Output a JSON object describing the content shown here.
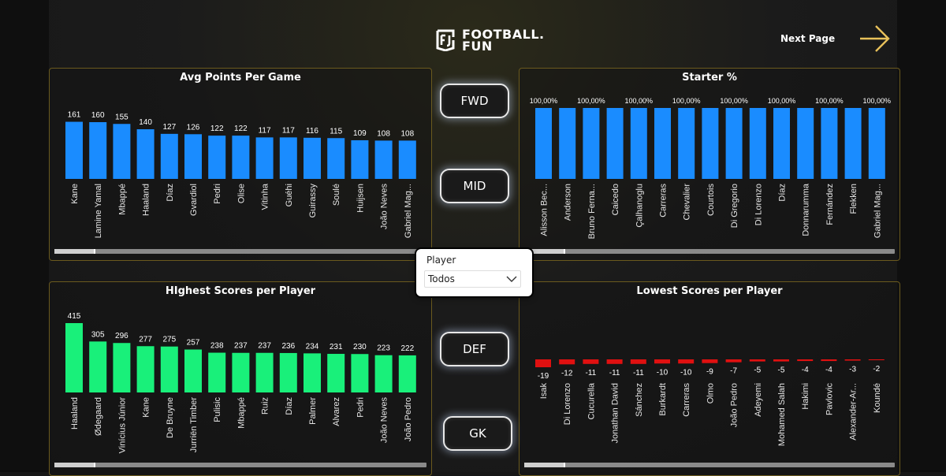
{
  "header": {
    "brand_line1": "FOOTBALL.",
    "brand_line2": "FUN",
    "next_page_label": "Next Page"
  },
  "position_buttons": {
    "fwd": "FWD",
    "mid": "MID",
    "def": "DEF",
    "gk": "GK"
  },
  "player_slicer": {
    "label": "Player",
    "selected": "Todos"
  },
  "colors": {
    "blue": "#1a8cff",
    "green": "#19f07a",
    "red": "#e01010",
    "panel_border": "#6b5a1e",
    "accent_gold": "#e8c15a"
  },
  "chart_data": [
    {
      "id": "avg",
      "type": "bar",
      "title": "Avg Points Per Game",
      "categories": [
        "Kane",
        "Lamine Yamal",
        "Mbappé",
        "Haaland",
        "Díaz",
        "Gvardiol",
        "Pedri",
        "Olise",
        "Vitinha",
        "Guéhi",
        "Guirassy",
        "Soulé",
        "Huijsen",
        "João Neves",
        "Gabriel Mag..."
      ],
      "values": [
        161,
        160,
        155,
        140,
        127,
        126,
        122,
        122,
        117,
        117,
        116,
        115,
        109,
        108,
        108
      ],
      "labels": [
        "161",
        "160",
        "155",
        "140",
        "127",
        "126",
        "122",
        "122",
        "117",
        "117",
        "116",
        "115",
        "109",
        "108",
        "108"
      ],
      "ylim": [
        0,
        200
      ]
    },
    {
      "id": "starter",
      "type": "bar",
      "title": "Starter %",
      "categories": [
        "Alisson Bec...",
        "Anderson",
        "Bruno Ferna...",
        "Caicedo",
        "Çalhanoglu",
        "Carreras",
        "Chevalier",
        "Courtois",
        "Di Gregorio",
        "Di Lorenzo",
        "Díaz",
        "Donnarumma",
        "Fernández",
        "Flekken",
        "Gabriel Mag..."
      ],
      "values": [
        100,
        100,
        100,
        100,
        100,
        100,
        100,
        100,
        100,
        100,
        100,
        100,
        100,
        100,
        100
      ],
      "labels": [
        "100,00%",
        "",
        "100,00%",
        "",
        "100,00%",
        "",
        "100,00%",
        "",
        "100,00%",
        "",
        "100,00%",
        "",
        "100,00%",
        "",
        "100,00%"
      ],
      "ylim": [
        0,
        100
      ]
    },
    {
      "id": "highest",
      "type": "bar",
      "title": "HIghest Scores per Player",
      "categories": [
        "Haaland",
        "Ødegaard",
        "Vinícius Júnior",
        "Kane",
        "De Bruyne",
        "Jurriën Timber",
        "Pulisic",
        "Mbappé",
        "Ruiz",
        "Díaz",
        "Palmer",
        "Alvarez",
        "Pedri",
        "João Neves",
        "João Pedro"
      ],
      "values": [
        415,
        305,
        296,
        277,
        275,
        257,
        238,
        237,
        237,
        236,
        234,
        231,
        230,
        223,
        222
      ],
      "labels": [
        "415",
        "305",
        "296",
        "277",
        "275",
        "257",
        "238",
        "237",
        "237",
        "236",
        "234",
        "231",
        "230",
        "223",
        "222"
      ],
      "ylim": [
        0,
        415
      ]
    },
    {
      "id": "lowest",
      "type": "bar",
      "title": "Lowest Scores per Player",
      "categories": [
        "Isak",
        "Di Lorenzo",
        "Cucurella",
        "Jonathan David",
        "Sánchez",
        "Burkardt",
        "Carreras",
        "Olmo",
        "João Pedro",
        "Adeyemi",
        "Mohamed Salah",
        "Hakimi",
        "Pavlovic",
        "Alexander-Ar...",
        "Koundé"
      ],
      "values": [
        -19,
        -12,
        -11,
        -11,
        -11,
        -10,
        -10,
        -9,
        -7,
        -5,
        -5,
        -4,
        -4,
        -3,
        -2
      ],
      "labels": [
        "-19",
        "-12",
        "-11",
        "-11",
        "-11",
        "-10",
        "-10",
        "-9",
        "-7",
        "-5",
        "-5",
        "-4",
        "-4",
        "-3",
        "-2"
      ],
      "ylim": [
        -19,
        0
      ]
    }
  ]
}
